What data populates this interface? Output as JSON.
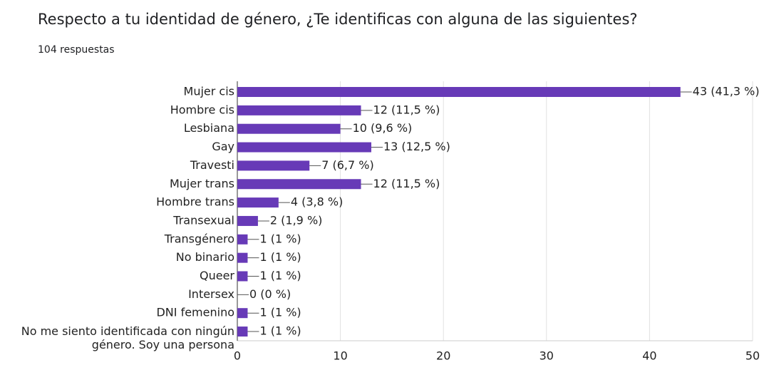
{
  "chart_data": {
    "type": "bar",
    "orientation": "horizontal",
    "title": "Respecto a tu identidad de género, ¿Te identificas con alguna de las siguientes?",
    "subtitle": "104 respuestas",
    "categories": [
      "Mujer cis",
      "Hombre cis",
      "Lesbiana",
      "Gay",
      "Travesti",
      "Mujer trans",
      "Hombre trans",
      "Transexual",
      "Transgénero",
      "No binario",
      "Queer",
      "Intersex",
      "DNI femenino",
      "No me siento identificada con ningún género. Soy una persona"
    ],
    "values": [
      43,
      12,
      10,
      13,
      7,
      12,
      4,
      2,
      1,
      1,
      1,
      0,
      1,
      1
    ],
    "value_labels": [
      "43 (41,3 %)",
      "12 (11,5 %)",
      "10 (9,6 %)",
      "13 (12,5 %)",
      "7 (6,7 %)",
      "12 (11,5 %)",
      "4 (3,8 %)",
      "2 (1,9 %)",
      "1 (1 %)",
      "1 (1 %)",
      "1 (1 %)",
      "0 (0 %)",
      "1 (1 %)",
      "1 (1 %)"
    ],
    "color": "#673ab7",
    "xlim": [
      0,
      50
    ],
    "xticks": [
      0,
      10,
      20,
      30,
      40,
      50
    ],
    "grid": true
  }
}
